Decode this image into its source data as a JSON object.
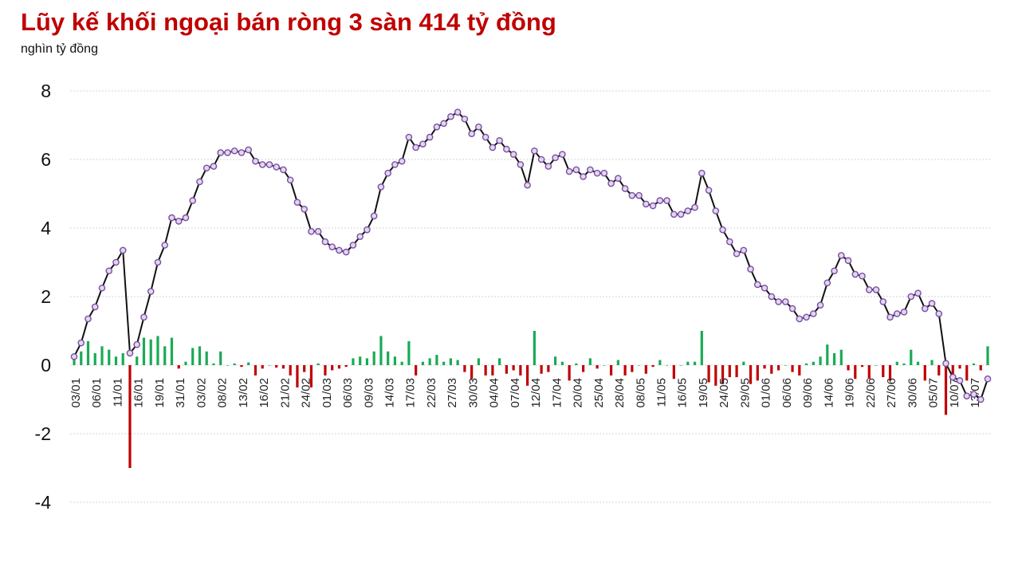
{
  "title": "Lũy kế khối ngoại bán ròng 3 sàn 414 tỷ đồng",
  "unit_label": "nghìn tỷ đồng",
  "colors": {
    "title": "#c00000",
    "buy_bar": "#1aaa55",
    "sell_bar": "#c00000",
    "line": "#111111",
    "marker_fill": "#e2d6f0",
    "marker_stroke": "#7a4fa0",
    "grid": "#d4d4d4"
  },
  "chart_data": {
    "type": "bar+line",
    "title": "Lũy kế khối ngoại bán ròng 3 sàn 414 tỷ đồng",
    "ylabel": "nghìn tỷ đồng",
    "ylim": [
      -4,
      8
    ],
    "yticks": [
      8,
      6,
      4,
      2,
      0,
      -2,
      -4
    ],
    "grid": true,
    "legend": "none",
    "x_tick_labels": [
      "03/01",
      "06/01",
      "11/01",
      "16/01",
      "19/01",
      "31/01",
      "03/02",
      "08/02",
      "13/02",
      "16/02",
      "21/02",
      "24/02",
      "01/03",
      "06/03",
      "09/03",
      "14/03",
      "17/03",
      "22/03",
      "27/03",
      "30/03",
      "04/04",
      "07/04",
      "12/04",
      "17/04",
      "20/04",
      "25/04",
      "28/04",
      "08/05",
      "11/05",
      "16/05",
      "19/05",
      "24/05",
      "29/05",
      "01/06",
      "06/06",
      "09/06",
      "14/06",
      "19/06",
      "22/06",
      "27/06",
      "30/06",
      "05/07",
      "10/07",
      "13/07"
    ],
    "series": [
      {
        "type": "line",
        "values": [
          0.25,
          0.65,
          1.35,
          1.7,
          2.25,
          2.75,
          3.0,
          3.35,
          0.35,
          0.6,
          1.4,
          2.15,
          3.0,
          3.5,
          4.3,
          4.2,
          4.3,
          4.8,
          5.35,
          5.75,
          5.8,
          6.2,
          6.2,
          6.25,
          6.2,
          6.28,
          5.95,
          5.85,
          5.85,
          5.78,
          5.7,
          5.4,
          4.75,
          4.55,
          3.9,
          3.9,
          3.6,
          3.45,
          3.35,
          3.3,
          3.5,
          3.75,
          3.95,
          4.35,
          5.2,
          5.6,
          5.85,
          5.95,
          6.65,
          6.35,
          6.45,
          6.65,
          6.95,
          7.05,
          7.25,
          7.38,
          7.18,
          6.75,
          6.95,
          6.65,
          6.35,
          6.55,
          6.3,
          6.15,
          5.85,
          5.25,
          6.25,
          6.0,
          5.8,
          6.05,
          6.15,
          5.65,
          5.7,
          5.5,
          5.7,
          5.6,
          5.6,
          5.3,
          5.45,
          5.15,
          4.95,
          4.95,
          4.7,
          4.65,
          4.8,
          4.8,
          4.4,
          4.4,
          4.5,
          4.6,
          5.6,
          5.1,
          4.5,
          3.95,
          3.6,
          3.25,
          3.35,
          2.8,
          2.35,
          2.25,
          2.0,
          1.85,
          1.85,
          1.65,
          1.35,
          1.4,
          1.5,
          1.75,
          2.4,
          2.75,
          3.2,
          3.05,
          2.65,
          2.6,
          2.2,
          2.2,
          1.85,
          1.4,
          1.5,
          1.55,
          2.0,
          2.1,
          1.65,
          1.8,
          1.5,
          0.05,
          -0.35,
          -0.45,
          -0.9,
          -0.85,
          -1.0,
          -0.4
        ]
      },
      {
        "type": "bar",
        "values": [
          0.25,
          0.4,
          0.7,
          0.35,
          0.55,
          0.45,
          0.25,
          0.35,
          -3.0,
          0.25,
          0.8,
          0.75,
          0.85,
          0.55,
          0.8,
          -0.1,
          0.1,
          0.5,
          0.55,
          0.4,
          0.05,
          0.4,
          0.0,
          0.05,
          -0.05,
          0.08,
          -0.3,
          -0.1,
          0.0,
          -0.07,
          -0.1,
          -0.3,
          -0.65,
          -0.2,
          -0.65,
          0.05,
          -0.3,
          -0.15,
          -0.1,
          -0.05,
          0.2,
          0.25,
          0.2,
          0.4,
          0.85,
          0.4,
          0.25,
          0.1,
          0.7,
          -0.3,
          0.1,
          0.2,
          0.3,
          0.1,
          0.2,
          0.15,
          -0.2,
          -0.4,
          0.2,
          -0.3,
          -0.3,
          0.2,
          -0.25,
          -0.15,
          -0.3,
          -0.6,
          1.0,
          -0.25,
          -0.2,
          0.25,
          0.1,
          -0.45,
          0.05,
          -0.2,
          0.2,
          -0.1,
          0.0,
          -0.3,
          0.15,
          -0.3,
          -0.2,
          0.0,
          -0.25,
          -0.05,
          0.15,
          0.0,
          -0.4,
          0.0,
          0.1,
          0.1,
          1.0,
          -0.5,
          -0.6,
          -0.55,
          -0.35,
          -0.35,
          0.1,
          -0.55,
          -0.45,
          -0.1,
          -0.25,
          -0.15,
          0.0,
          -0.2,
          -0.3,
          0.05,
          0.1,
          0.25,
          0.6,
          0.35,
          0.45,
          -0.15,
          -0.4,
          -0.05,
          -0.4,
          0.0,
          -0.35,
          -0.45,
          0.1,
          0.05,
          0.45,
          0.1,
          -0.45,
          0.15,
          -0.3,
          -1.45,
          -0.4,
          -0.1,
          -0.45,
          0.05,
          -0.15,
          0.55
        ]
      }
    ]
  }
}
